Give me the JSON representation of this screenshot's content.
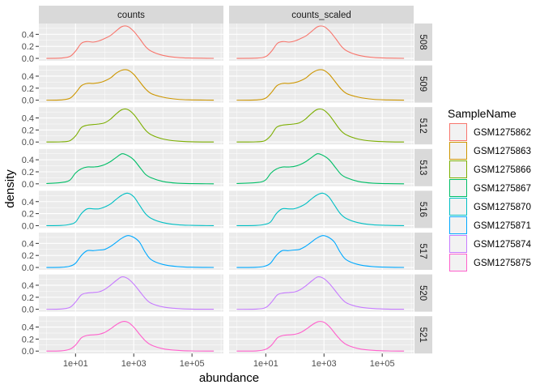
{
  "chart_data": {
    "type": "line",
    "subtype": "faceted density",
    "xlabel": "abundance",
    "ylabel": "density",
    "x_scale": "log10",
    "xlim_log10": [
      -0.26,
      6.08
    ],
    "ylim": [
      -0.04,
      0.58
    ],
    "x_ticks": [
      {
        "log10": 1,
        "label": "1e+01"
      },
      {
        "log10": 3,
        "label": "1e+03"
      },
      {
        "log10": 5,
        "label": "1e+05"
      }
    ],
    "y_ticks": [
      {
        "value": 0.0,
        "label": "0.0"
      },
      {
        "value": 0.2,
        "label": "0.2"
      },
      {
        "value": 0.4,
        "label": "0.4"
      }
    ],
    "grid": true,
    "facet_columns": [
      "counts",
      "counts_scaled"
    ],
    "legend": {
      "title": "SampleName",
      "placement": "right"
    },
    "x_log10_grid": [
      0,
      0.5,
      0.8,
      1,
      1.2,
      1.4,
      1.6,
      1.8,
      2,
      2.2,
      2.4,
      2.6,
      2.8,
      3,
      3.2,
      3.4,
      3.6,
      4,
      4.5,
      5,
      5.75
    ],
    "series": [
      {
        "row": "508",
        "name": "GSM1275862",
        "color": "#F8766D",
        "scaled_shift_log10": 0.2,
        "density": [
          0,
          0.005,
          0.03,
          0.12,
          0.25,
          0.28,
          0.27,
          0.29,
          0.33,
          0.38,
          0.46,
          0.53,
          0.53,
          0.45,
          0.33,
          0.2,
          0.12,
          0.05,
          0.015,
          0.005,
          0
        ]
      },
      {
        "row": "509",
        "name": "GSM1275863",
        "color": "#CD9600",
        "scaled_shift_log10": 0.18,
        "density": [
          0,
          0.005,
          0.03,
          0.12,
          0.24,
          0.28,
          0.28,
          0.29,
          0.32,
          0.37,
          0.45,
          0.5,
          0.5,
          0.43,
          0.31,
          0.19,
          0.11,
          0.05,
          0.015,
          0.005,
          0
        ]
      },
      {
        "row": "512",
        "name": "GSM1275866",
        "color": "#7CAE00",
        "scaled_shift_log10": 0.16,
        "density": [
          0,
          0.003,
          0.02,
          0.1,
          0.24,
          0.28,
          0.29,
          0.3,
          0.32,
          0.38,
          0.47,
          0.54,
          0.54,
          0.46,
          0.33,
          0.2,
          0.12,
          0.05,
          0.015,
          0.004,
          0
        ]
      },
      {
        "row": "513",
        "name": "GSM1275867",
        "color": "#00BE67",
        "scaled_shift_log10": 0.18,
        "density": [
          0.005,
          0.02,
          0.06,
          0.18,
          0.25,
          0.28,
          0.28,
          0.29,
          0.32,
          0.37,
          0.44,
          0.5,
          0.47,
          0.4,
          0.28,
          0.16,
          0.1,
          0.04,
          0.01,
          0.003,
          0
        ]
      },
      {
        "row": "516",
        "name": "GSM1275870",
        "color": "#00BFC4",
        "scaled_shift_log10": 0.16,
        "density": [
          0,
          0.003,
          0.02,
          0.06,
          0.2,
          0.28,
          0.28,
          0.28,
          0.31,
          0.36,
          0.44,
          0.51,
          0.54,
          0.48,
          0.34,
          0.2,
          0.12,
          0.05,
          0.015,
          0.004,
          0
        ]
      },
      {
        "row": "517",
        "name": "GSM1275871",
        "color": "#00A9FF",
        "scaled_shift_log10": 0.16,
        "density": [
          0,
          0.003,
          0.02,
          0.07,
          0.2,
          0.28,
          0.28,
          0.29,
          0.3,
          0.35,
          0.42,
          0.49,
          0.53,
          0.5,
          0.42,
          0.25,
          0.13,
          0.05,
          0.015,
          0.004,
          0
        ]
      },
      {
        "row": "520",
        "name": "GSM1275874",
        "color": "#C77CFF",
        "scaled_shift_log10": 0.2,
        "density": [
          0,
          0.004,
          0.03,
          0.12,
          0.24,
          0.27,
          0.28,
          0.29,
          0.33,
          0.4,
          0.48,
          0.54,
          0.51,
          0.42,
          0.3,
          0.18,
          0.1,
          0.04,
          0.012,
          0.003,
          0
        ]
      },
      {
        "row": "521",
        "name": "GSM1275875",
        "color": "#FF61CC",
        "scaled_shift_log10": 0.2,
        "density": [
          0,
          0.004,
          0.03,
          0.1,
          0.22,
          0.26,
          0.27,
          0.28,
          0.31,
          0.37,
          0.44,
          0.49,
          0.48,
          0.4,
          0.28,
          0.17,
          0.1,
          0.04,
          0.012,
          0.003,
          0
        ]
      }
    ]
  }
}
